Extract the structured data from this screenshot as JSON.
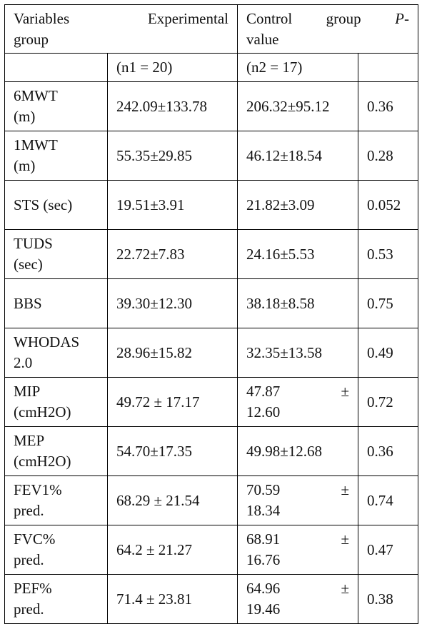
{
  "header": {
    "col1_line1_left": "Variables",
    "col1_line1_right": "Experimental",
    "col1_line2": "group",
    "col2_line1_a": "Control",
    "col2_line1_b": "group",
    "col2_line1_c": "P-",
    "col2_line2": "value"
  },
  "subheader": {
    "n1": "(n1 = 20)",
    "n2": "(n2 = 17)"
  },
  "rows": [
    {
      "var_l1": "6MWT",
      "var_l2": "(m)",
      "exp": "242.09±133.78",
      "ctl_l1": "206.32±95.12",
      "ctl_l2": "",
      "p": "0.36"
    },
    {
      "var_l1": "1MWT",
      "var_l2": "(m)",
      "exp": "55.35±29.85",
      "ctl_l1": "46.12±18.54",
      "ctl_l2": "",
      "p": "0.28"
    },
    {
      "var_l1": "STS (sec)",
      "var_l2": "",
      "exp": "19.51±3.91",
      "ctl_l1": "21.82±3.09",
      "ctl_l2": "",
      "p": "0.052"
    },
    {
      "var_l1": "TUDS",
      "var_l2": "(sec)",
      "exp": "22.72±7.83",
      "ctl_l1": "24.16±5.53",
      "ctl_l2": "",
      "p": "0.53"
    },
    {
      "var_l1": "BBS",
      "var_l2": "",
      "exp": "39.30±12.30",
      "ctl_l1": "38.18±8.58",
      "ctl_l2": "",
      "p": "0.75"
    },
    {
      "var_l1": "WHODAS",
      "var_l2": "2.0",
      "exp": "28.96±15.82",
      "ctl_l1": "32.35±13.58",
      "ctl_l2": "",
      "p": "0.49"
    },
    {
      "var_l1": "MIP",
      "var_l2": "(cmH2O)",
      "exp": "49.72 ± 17.17",
      "ctl_l1": "47.87 ±",
      "ctl_l2": "12.60",
      "p": "0.72"
    },
    {
      "var_l1": "MEP",
      "var_l2": "(cmH2O)",
      "exp": "54.70±17.35",
      "ctl_l1": "49.98±12.68",
      "ctl_l2": "",
      "p": "0.36"
    },
    {
      "var_l1": "FEV1%",
      "var_l2": "pred.",
      "exp": "68.29 ± 21.54",
      "ctl_l1": "70.59 ±",
      "ctl_l2": "18.34",
      "p": "0.74"
    },
    {
      "var_l1": "FVC%",
      "var_l2": "pred.",
      "exp": "64.2 ± 21.27",
      "ctl_l1": "68.91 ±",
      "ctl_l2": "16.76",
      "p": "0.47"
    },
    {
      "var_l1": "PEF%",
      "var_l2": "pred.",
      "exp": "71.4 ± 23.81",
      "ctl_l1": "64.96 ±",
      "ctl_l2": "19.46",
      "p": "0.38"
    }
  ]
}
